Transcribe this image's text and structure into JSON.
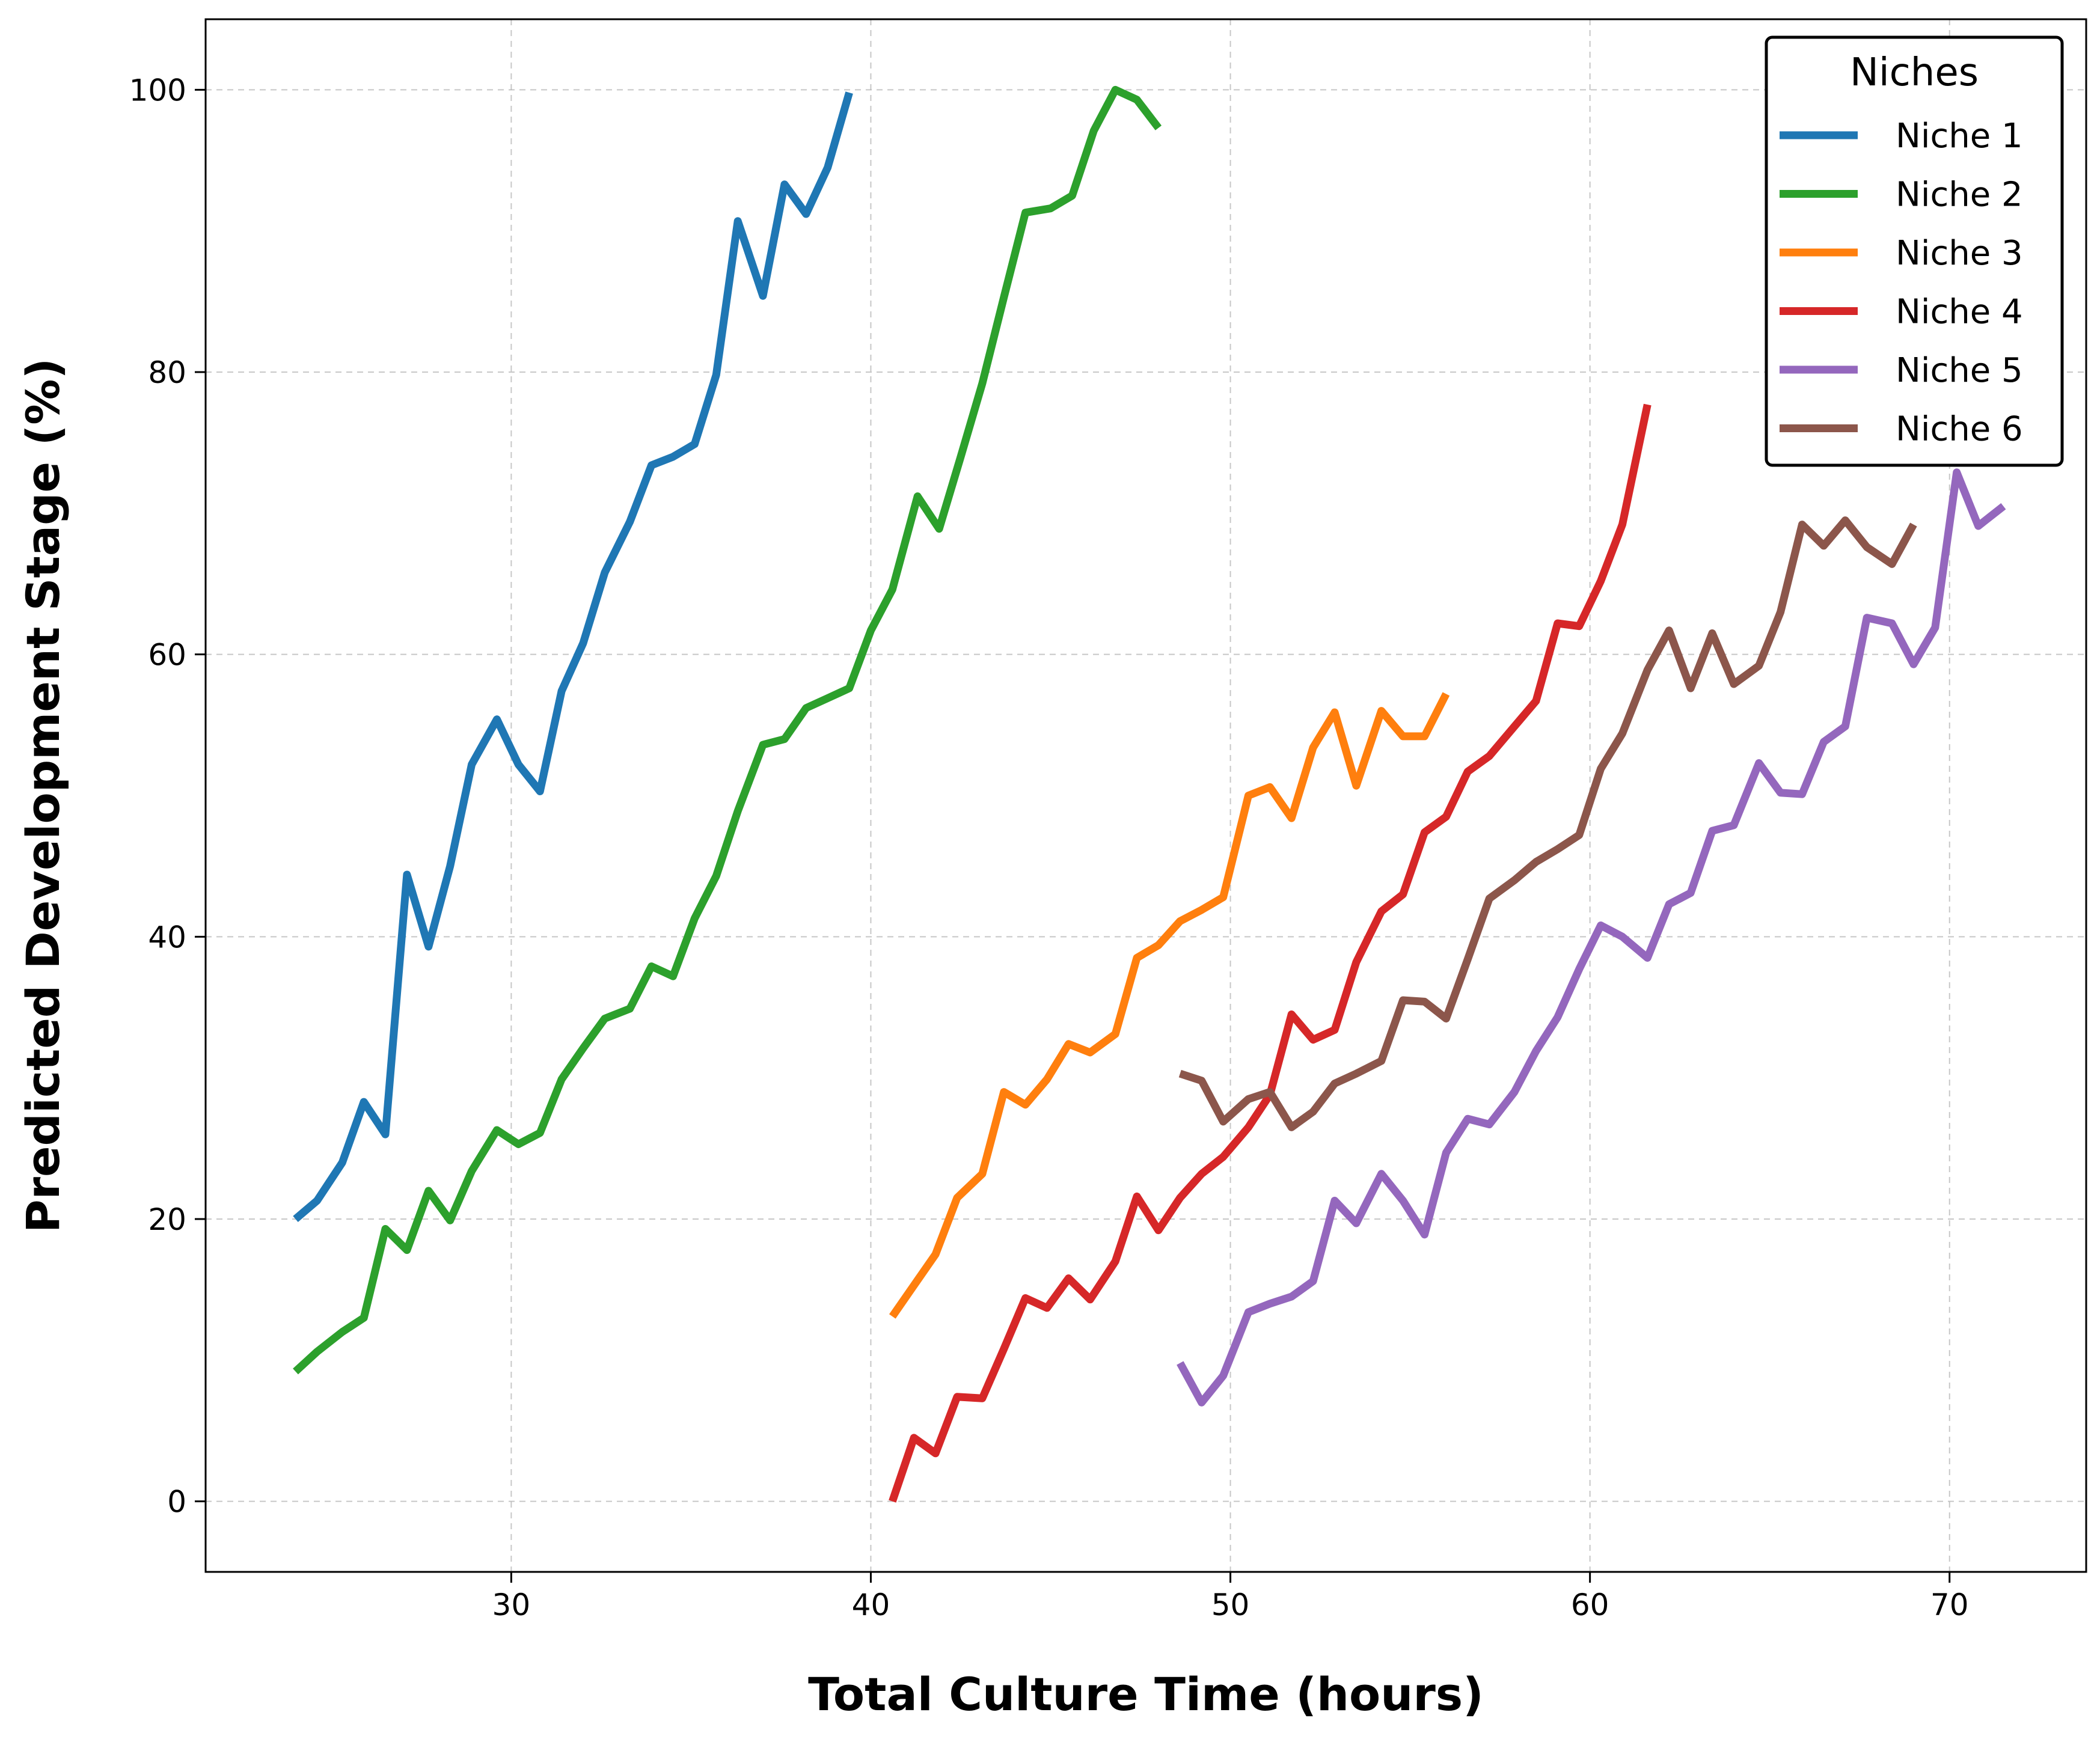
{
  "chart_data": {
    "type": "line",
    "title": "",
    "xlabel": "Total Culture Time (hours)",
    "ylabel": "Predicted Development Stage (%)",
    "xlim": [
      21.5,
      73.8
    ],
    "ylim": [
      -5,
      105
    ],
    "xticks": [
      30,
      40,
      50,
      60,
      70
    ],
    "yticks": [
      0,
      20,
      40,
      60,
      80,
      100
    ],
    "grid": true,
    "legend": {
      "title": "Niches",
      "position": "top-right"
    },
    "series": [
      {
        "name": "Niche 1",
        "color": "#1f77b4",
        "x": [
          24.0,
          24.6,
          25.3,
          25.9,
          26.5,
          27.1,
          27.7,
          28.3,
          28.9,
          29.6,
          30.2,
          30.8,
          31.4,
          32.0,
          32.6,
          33.3,
          33.9,
          34.5,
          35.1,
          35.7,
          36.3,
          37.0,
          37.6,
          38.2,
          38.8,
          39.4
        ],
        "y": [
          20.0,
          21.3,
          24.0,
          28.3,
          26.0,
          44.4,
          39.3,
          45.0,
          52.2,
          55.4,
          52.2,
          50.3,
          57.4,
          60.8,
          65.8,
          69.4,
          73.4,
          74.0,
          74.9,
          79.8,
          90.7,
          85.4,
          93.3,
          91.2,
          94.5,
          99.8
        ]
      },
      {
        "name": "Niche 2",
        "color": "#2ca02c",
        "x": [
          24.0,
          24.6,
          25.3,
          25.9,
          26.5,
          27.1,
          27.7,
          28.3,
          28.9,
          29.6,
          30.2,
          30.8,
          31.4,
          32.0,
          32.6,
          33.3,
          33.9,
          34.5,
          35.1,
          35.7,
          36.3,
          37.0,
          37.6,
          38.2,
          38.8,
          39.4,
          40.0,
          40.6,
          41.3,
          41.9,
          42.5,
          43.1,
          43.7,
          44.3,
          45.0,
          45.6,
          46.2,
          46.8,
          47.4,
          48.0
        ],
        "y": [
          9.2,
          10.6,
          12.0,
          13.0,
          19.3,
          17.8,
          22.0,
          19.9,
          23.4,
          26.3,
          25.3,
          26.1,
          29.9,
          32.1,
          34.2,
          34.9,
          37.9,
          37.2,
          41.3,
          44.3,
          48.9,
          53.6,
          54.0,
          56.2,
          56.9,
          57.6,
          61.7,
          64.6,
          71.2,
          68.9,
          74.0,
          79.2,
          85.3,
          91.3,
          91.6,
          92.5,
          97.1,
          100.0,
          99.3,
          97.3
        ]
      },
      {
        "name": "Niche 3",
        "color": "#ff7f0e",
        "x": [
          40.6,
          41.2,
          41.8,
          42.4,
          43.1,
          43.7,
          44.3,
          44.9,
          45.5,
          46.1,
          46.8,
          47.4,
          48.0,
          48.6,
          49.2,
          49.8,
          50.5,
          51.1,
          51.7,
          52.3,
          52.9,
          53.5,
          54.2,
          54.8,
          55.4,
          56.0
        ],
        "y": [
          13.1,
          15.3,
          17.5,
          21.5,
          23.2,
          29.0,
          28.1,
          29.9,
          32.4,
          31.8,
          33.1,
          38.5,
          39.4,
          41.1,
          41.9,
          42.8,
          50.0,
          50.6,
          48.4,
          53.4,
          55.9,
          50.7,
          56.0,
          54.2,
          54.2,
          57.2
        ]
      },
      {
        "name": "Niche 4",
        "color": "#d62728",
        "x": [
          40.6,
          41.2,
          41.8,
          42.4,
          43.1,
          43.7,
          44.3,
          44.9,
          45.5,
          46.1,
          46.8,
          47.4,
          48.0,
          48.6,
          49.2,
          49.8,
          50.5,
          51.1,
          51.7,
          52.3,
          52.9,
          53.5,
          54.2,
          54.8,
          55.4,
          56.0,
          56.6,
          57.2,
          57.9,
          58.5,
          59.1,
          59.7,
          60.3,
          60.9,
          61.6
        ],
        "y": [
          0.0,
          4.5,
          3.4,
          7.4,
          7.3,
          10.8,
          14.4,
          13.7,
          15.8,
          14.3,
          17.0,
          21.6,
          19.2,
          21.5,
          23.2,
          24.4,
          26.5,
          28.8,
          34.5,
          32.7,
          33.4,
          38.2,
          41.8,
          43.0,
          47.4,
          48.5,
          51.7,
          52.8,
          54.9,
          56.7,
          62.2,
          62.0,
          65.2,
          69.2,
          77.7
        ]
      },
      {
        "name": "Niche 5",
        "color": "#9467bd",
        "x": [
          48.6,
          49.2,
          49.8,
          50.5,
          51.1,
          51.7,
          52.3,
          52.9,
          53.5,
          54.2,
          54.8,
          55.4,
          56.0,
          56.6,
          57.2,
          57.9,
          58.5,
          59.1,
          59.7,
          60.3,
          60.9,
          61.6,
          62.2,
          62.8,
          63.4,
          64.0,
          64.7,
          65.3,
          65.9,
          66.5,
          67.1,
          67.7,
          68.4,
          69.0,
          69.6,
          70.2,
          70.8,
          71.5
        ],
        "y": [
          9.8,
          7.0,
          8.9,
          13.4,
          14.0,
          14.5,
          15.6,
          21.3,
          19.7,
          23.2,
          21.3,
          18.9,
          24.7,
          27.1,
          26.7,
          29.0,
          31.9,
          34.3,
          37.7,
          40.8,
          40.0,
          38.5,
          42.3,
          43.1,
          47.5,
          47.9,
          52.3,
          50.2,
          50.1,
          53.8,
          54.9,
          62.6,
          62.2,
          59.3,
          61.9,
          72.9,
          69.1,
          70.5
        ]
      },
      {
        "name": "Niche 6",
        "color": "#8c564b",
        "x": [
          48.6,
          49.2,
          49.8,
          50.5,
          51.1,
          51.7,
          52.3,
          52.9,
          53.5,
          54.2,
          54.8,
          55.4,
          56.0,
          56.6,
          57.2,
          57.9,
          58.5,
          59.1,
          59.7,
          60.3,
          60.9,
          61.6,
          62.2,
          62.8,
          63.4,
          64.0,
          64.7,
          65.3,
          65.9,
          66.5,
          67.1,
          67.7,
          68.4,
          69.0
        ],
        "y": [
          30.3,
          29.8,
          26.9,
          28.5,
          29.0,
          26.5,
          27.6,
          29.6,
          30.3,
          31.2,
          35.5,
          35.4,
          34.2,
          38.4,
          42.7,
          44.0,
          45.3,
          46.2,
          47.2,
          51.9,
          54.4,
          58.9,
          61.7,
          57.6,
          61.5,
          57.9,
          59.2,
          63.0,
          69.2,
          67.7,
          69.5,
          67.6,
          66.4,
          69.2
        ]
      }
    ]
  }
}
